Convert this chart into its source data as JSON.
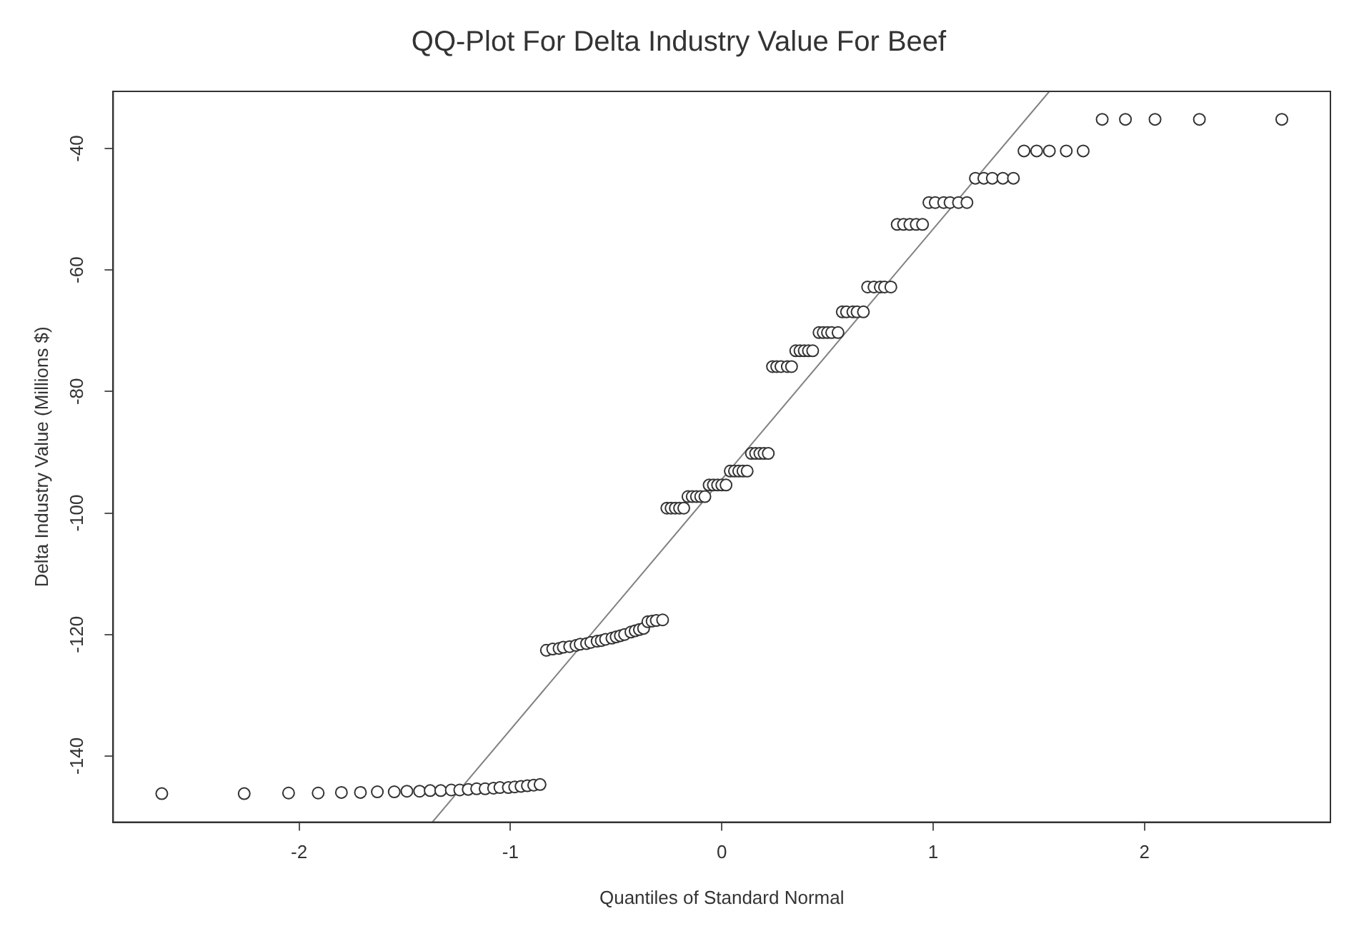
{
  "chart_data": {
    "type": "scatter",
    "title": "QQ-Plot For Delta Industry Value For Beef",
    "xlabel": "Quantiles of Standard Normal",
    "ylabel": "Delta Industry Value (Millions $)",
    "xlim": [
      -2.88,
      2.88
    ],
    "xticks": [
      -2,
      -1,
      0,
      1,
      2
    ],
    "ylim": [
      -150.9,
      -30.6
    ],
    "yticks": [
      -140,
      -120,
      -100,
      -80,
      -60,
      -40
    ],
    "grid": false,
    "legend": false,
    "marker": "circle",
    "series": [
      {
        "color": "#333333",
        "x": [
          -2.65,
          -2.26,
          -2.05,
          -1.91,
          -1.8,
          -1.71,
          -1.63,
          -1.55,
          -1.49,
          -1.43,
          -1.38,
          -1.33,
          -1.28,
          -1.24,
          -1.2,
          -1.16,
          -1.12,
          -1.08,
          -1.05,
          -1.01,
          -0.98,
          -0.95,
          -0.92,
          -0.89,
          -0.86,
          -0.83,
          -0.8,
          -0.77,
          -0.75,
          -0.72,
          -0.69,
          -0.67,
          -0.64,
          -0.62,
          -0.59,
          -0.57,
          -0.55,
          -0.52,
          -0.5,
          -0.48,
          -0.46,
          -0.43,
          -0.41,
          -0.39,
          -0.37,
          -0.35,
          -0.33,
          -0.31,
          -0.28,
          -0.26,
          -0.24,
          -0.22,
          -0.2,
          -0.18,
          -0.16,
          -0.14,
          -0.12,
          -0.1,
          -0.08,
          -0.06,
          -0.04,
          -0.02,
          0,
          0.02,
          0.04,
          0.06,
          0.08,
          0.1,
          0.12,
          0.14,
          0.16,
          0.18,
          0.2,
          0.22,
          0.24,
          0.26,
          0.28,
          0.31,
          0.33,
          0.35,
          0.37,
          0.39,
          0.41,
          0.43,
          0.46,
          0.48,
          0.5,
          0.52,
          0.55,
          0.57,
          0.59,
          0.62,
          0.64,
          0.67,
          0.69,
          0.72,
          0.75,
          0.77,
          0.8,
          0.83,
          0.86,
          0.89,
          0.92,
          0.95,
          0.98,
          1.01,
          1.05,
          1.08,
          1.12,
          1.16,
          1.2,
          1.24,
          1.28,
          1.33,
          1.38,
          1.43,
          1.49,
          1.55,
          1.63,
          1.71,
          1.8,
          1.91,
          2.05,
          2.26,
          2.65
        ],
        "values": [
          -146.2,
          -146.2,
          -146.1,
          -146.1,
          -146.0,
          -146.0,
          -145.9,
          -145.9,
          -145.8,
          -145.8,
          -145.7,
          -145.7,
          -145.6,
          -145.6,
          -145.5,
          -145.4,
          -145.4,
          -145.3,
          -145.2,
          -145.2,
          -145.1,
          -145.0,
          -144.9,
          -144.8,
          -144.7,
          -122.6,
          -122.4,
          -122.3,
          -122.1,
          -122.0,
          -121.8,
          -121.6,
          -121.5,
          -121.3,
          -121.1,
          -121.0,
          -120.8,
          -120.6,
          -120.4,
          -120.2,
          -120.0,
          -119.6,
          -119.4,
          -119.2,
          -119.0,
          -117.9,
          -117.8,
          -117.7,
          -117.6,
          -99.2,
          -99.2,
          -99.2,
          -99.2,
          -99.2,
          -97.3,
          -97.3,
          -97.3,
          -97.3,
          -97.3,
          -95.4,
          -95.4,
          -95.4,
          -95.4,
          -95.4,
          -93.1,
          -93.1,
          -93.1,
          -93.1,
          -93.1,
          -90.2,
          -90.2,
          -90.2,
          -90.2,
          -90.2,
          -75.9,
          -75.9,
          -75.9,
          -75.9,
          -75.9,
          -73.3,
          -73.3,
          -73.3,
          -73.3,
          -73.3,
          -70.3,
          -70.3,
          -70.3,
          -70.3,
          -70.3,
          -66.9,
          -66.9,
          -66.9,
          -66.9,
          -66.9,
          -62.8,
          -62.8,
          -62.8,
          -62.8,
          -62.8,
          -52.5,
          -52.5,
          -52.5,
          -52.5,
          -52.5,
          -48.9,
          -48.9,
          -48.9,
          -48.9,
          -48.9,
          -48.9,
          -44.9,
          -44.9,
          -44.9,
          -44.9,
          -44.9,
          -40.4,
          -40.4,
          -40.4,
          -40.4,
          -40.4,
          -35.2,
          -35.2,
          -35.2,
          -35.2,
          -35.2
        ]
      },
      {
        "type": "line",
        "color": "#808080",
        "marker": "none",
        "x": [
          -1.37,
          1.55
        ],
        "values": [
          -150.9,
          -30.6
        ]
      }
    ]
  }
}
